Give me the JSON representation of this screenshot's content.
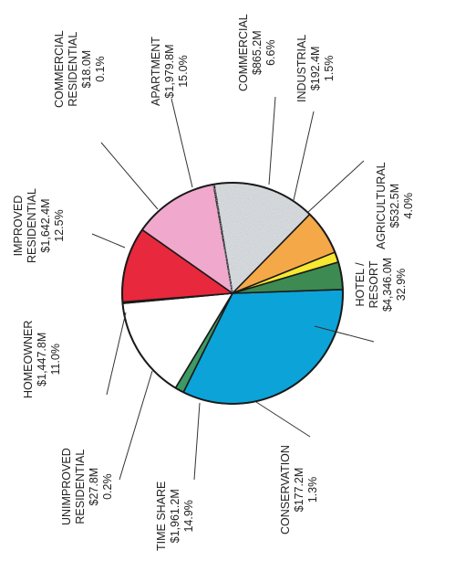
{
  "chart_data": {
    "type": "pie",
    "orientation": "rotated 90 degrees counter-clockwise",
    "slices": [
      {
        "name": "HOTEL / RESORT",
        "lines": [
          "HOTEL /",
          "RESORT"
        ],
        "value": "$4,346.0M",
        "percent": 32.9,
        "percent_label": "32.9%",
        "color": "#0ba3d8"
      },
      {
        "name": "CONSERVATION",
        "lines": [
          "CONSERVATION"
        ],
        "value": "$177.2M",
        "percent": 1.3,
        "percent_label": "1.3%",
        "color": "#3d9a64"
      },
      {
        "name": "TIME SHARE",
        "lines": [
          "TIME SHARE"
        ],
        "value": "$1,961.2M",
        "percent": 14.9,
        "percent_label": "14.9%",
        "color": "#ffffff"
      },
      {
        "name": "UNIMPROVED RESIDENTIAL",
        "lines": [
          "UNIMPROVED",
          "RESIDENTIAL"
        ],
        "value": "$27.8M",
        "percent": 0.2,
        "percent_label": "0.2%",
        "color": "#ffffff"
      },
      {
        "name": "HOMEOWNER",
        "lines": [
          "HOMEOWNER"
        ],
        "value": "$1,447.8M",
        "percent": 11.0,
        "percent_label": "11.0%",
        "color": "#e8283c"
      },
      {
        "name": "IMPROVED RESIDENTIAL",
        "lines": [
          "IMPROVED",
          "RESIDENTIAL"
        ],
        "value": "$1,642.4M",
        "percent": 12.5,
        "percent_label": "12.5%",
        "color": "#f0a8cc"
      },
      {
        "name": "COMMERCIAL RESIDENTIAL",
        "lines": [
          "COMMERCIAL",
          "RESIDENTIAL"
        ],
        "value": "$18.0M",
        "percent": 0.1,
        "percent_label": "0.1%",
        "color": "#d9dde0"
      },
      {
        "name": "APARTMENT",
        "lines": [
          "APARTMENT"
        ],
        "value": "$1,979.8M",
        "percent": 15.0,
        "percent_label": "15.0%",
        "color": "#d6dadd"
      },
      {
        "name": "COMMERCIAL",
        "lines": [
          "COMMERCIAL"
        ],
        "value": "$865.2M",
        "percent": 6.6,
        "percent_label": "6.6%",
        "color": "#f5a848"
      },
      {
        "name": "INDUSTRIAL",
        "lines": [
          "INDUSTRIAL"
        ],
        "value": "$192.4M",
        "percent": 1.5,
        "percent_label": "1.5%",
        "color": "#f7e832"
      },
      {
        "name": "AGRICULTURAL",
        "lines": [
          "AGRICULTURAL"
        ],
        "value": "$532.5M",
        "percent": 4.0,
        "percent_label": "4.0%",
        "color": "#3d8a52"
      }
    ]
  }
}
